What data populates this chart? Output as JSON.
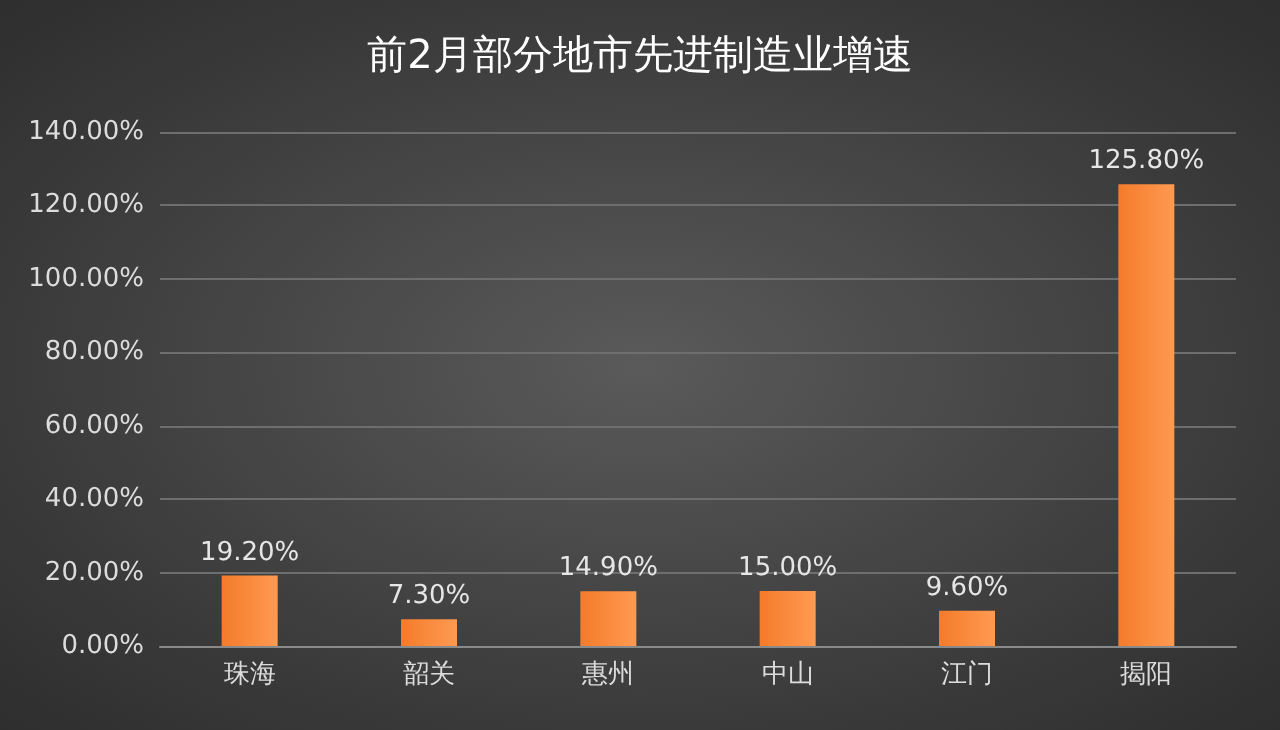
{
  "chart_data": {
    "type": "bar",
    "title": "前2月部分地市先进制造业增速",
    "categories": [
      "珠海",
      "韶关",
      "惠州",
      "中山",
      "江门",
      "揭阳"
    ],
    "values": [
      19.2,
      7.3,
      14.9,
      15.0,
      9.6,
      125.8
    ],
    "color": "#f47b2a",
    "value_labels": [
      "19.20%",
      "7.30%",
      "14.90%",
      "15.00%",
      "9.60%",
      "125.80%"
    ],
    "ylim": [
      0,
      140
    ],
    "yticks": [
      {
        "value": 0,
        "label": "0.00%"
      },
      {
        "value": 20,
        "label": "20.00%"
      },
      {
        "value": 40,
        "label": "40.00%"
      },
      {
        "value": 60,
        "label": "60.00%"
      },
      {
        "value": 80,
        "label": "80.00%"
      },
      {
        "value": 100,
        "label": "100.00%"
      },
      {
        "value": 120,
        "label": "120.00%"
      },
      {
        "value": 140,
        "label": "140.00%"
      }
    ],
    "grid": true
  }
}
